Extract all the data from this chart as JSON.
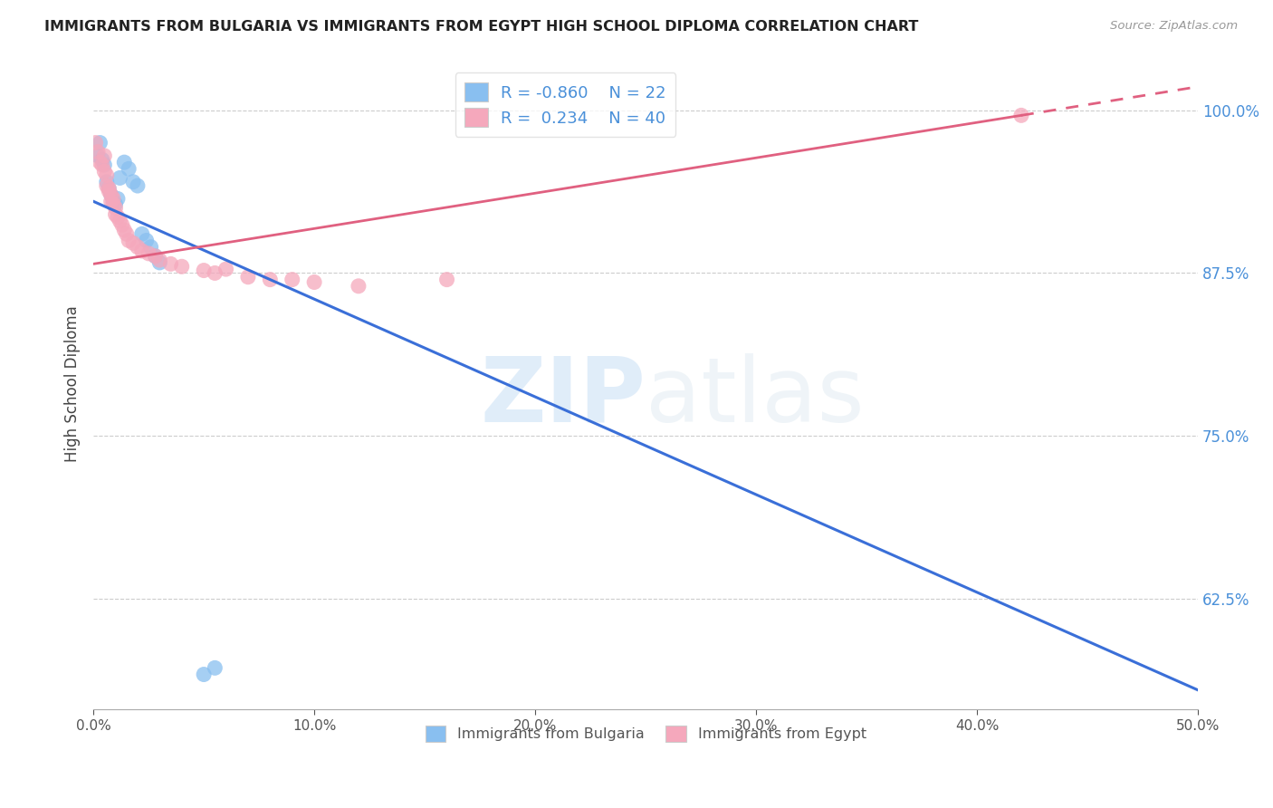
{
  "title": "IMMIGRANTS FROM BULGARIA VS IMMIGRANTS FROM EGYPT HIGH SCHOOL DIPLOMA CORRELATION CHART",
  "source": "Source: ZipAtlas.com",
  "ylabel": "High School Diploma",
  "ytick_labels": [
    "100.0%",
    "87.5%",
    "75.0%",
    "62.5%"
  ],
  "ytick_values": [
    1.0,
    0.875,
    0.75,
    0.625
  ],
  "xlim": [
    0.0,
    0.5
  ],
  "ylim": [
    0.54,
    1.04
  ],
  "legend_r_bulgaria": "-0.860",
  "legend_n_bulgaria": "22",
  "legend_r_egypt": "0.234",
  "legend_n_egypt": "40",
  "bulgaria_color": "#89bff0",
  "egypt_color": "#f5a8bc",
  "trendline_bulgaria_color": "#3a6fd8",
  "trendline_egypt_color": "#e06080",
  "background_color": "#ffffff",
  "watermark_zip": "ZIP",
  "watermark_atlas": "atlas",
  "bulgaria_trendline": [
    [
      0.0,
      0.93
    ],
    [
      0.5,
      0.555
    ]
  ],
  "egypt_trendline_solid": [
    [
      0.0,
      0.882
    ],
    [
      0.42,
      0.996
    ]
  ],
  "egypt_trendline_dash": [
    [
      0.42,
      0.996
    ],
    [
      0.5,
      1.018
    ]
  ],
  "bulgaria_points": [
    [
      0.002,
      0.965
    ],
    [
      0.003,
      0.975
    ],
    [
      0.004,
      0.962
    ],
    [
      0.005,
      0.958
    ],
    [
      0.006,
      0.945
    ],
    [
      0.007,
      0.94
    ],
    [
      0.008,
      0.935
    ],
    [
      0.009,
      0.93
    ],
    [
      0.01,
      0.928
    ],
    [
      0.011,
      0.932
    ],
    [
      0.012,
      0.948
    ],
    [
      0.014,
      0.96
    ],
    [
      0.016,
      0.955
    ],
    [
      0.018,
      0.945
    ],
    [
      0.02,
      0.942
    ],
    [
      0.022,
      0.905
    ],
    [
      0.024,
      0.9
    ],
    [
      0.026,
      0.895
    ],
    [
      0.028,
      0.888
    ],
    [
      0.03,
      0.883
    ],
    [
      0.05,
      0.567
    ],
    [
      0.055,
      0.572
    ]
  ],
  "egypt_points": [
    [
      0.001,
      0.975
    ],
    [
      0.002,
      0.968
    ],
    [
      0.003,
      0.96
    ],
    [
      0.004,
      0.958
    ],
    [
      0.005,
      0.953
    ],
    [
      0.005,
      0.965
    ],
    [
      0.006,
      0.95
    ],
    [
      0.006,
      0.942
    ],
    [
      0.007,
      0.94
    ],
    [
      0.007,
      0.938
    ],
    [
      0.008,
      0.935
    ],
    [
      0.008,
      0.93
    ],
    [
      0.009,
      0.932
    ],
    [
      0.009,
      0.928
    ],
    [
      0.01,
      0.925
    ],
    [
      0.01,
      0.92
    ],
    [
      0.011,
      0.918
    ],
    [
      0.012,
      0.915
    ],
    [
      0.013,
      0.912
    ],
    [
      0.014,
      0.908
    ],
    [
      0.015,
      0.905
    ],
    [
      0.016,
      0.9
    ],
    [
      0.018,
      0.898
    ],
    [
      0.02,
      0.895
    ],
    [
      0.022,
      0.892
    ],
    [
      0.025,
      0.89
    ],
    [
      0.028,
      0.888
    ],
    [
      0.03,
      0.885
    ],
    [
      0.035,
      0.882
    ],
    [
      0.04,
      0.88
    ],
    [
      0.05,
      0.877
    ],
    [
      0.055,
      0.875
    ],
    [
      0.06,
      0.878
    ],
    [
      0.07,
      0.872
    ],
    [
      0.08,
      0.87
    ],
    [
      0.09,
      0.87
    ],
    [
      0.1,
      0.868
    ],
    [
      0.12,
      0.865
    ],
    [
      0.16,
      0.87
    ],
    [
      0.42,
      0.996
    ]
  ]
}
